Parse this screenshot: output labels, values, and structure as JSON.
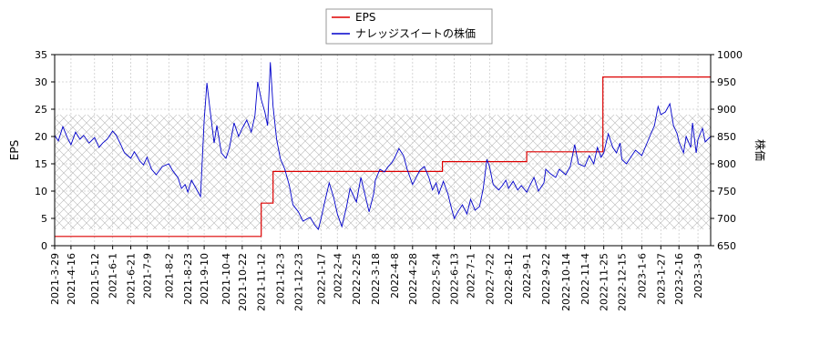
{
  "chart_data": {
    "type": "line",
    "title": "",
    "xlabel": "",
    "ylabel_left": "EPS",
    "ylabel_right": "株価",
    "ylim_left": [
      0,
      35
    ],
    "ylim_right": [
      650,
      1000
    ],
    "yticks_left": [
      0,
      5,
      10,
      15,
      20,
      25,
      30,
      35
    ],
    "yticks_right": [
      650,
      700,
      750,
      800,
      850,
      900,
      950,
      1000
    ],
    "x_range": [
      "2021-03-29",
      "2023-03-23"
    ],
    "x_tick_labels": [
      "2021-3-29",
      "2021-4-16",
      "2021-5-12",
      "2021-6-1",
      "2021-6-21",
      "2021-7-9",
      "2021-8-2",
      "2021-8-23",
      "2021-9-10",
      "2021-10-4",
      "2021-10-22",
      "2021-11-12",
      "2021-12-3",
      "2021-12-23",
      "2022-1-17",
      "2022-2-4",
      "2022-2-25",
      "2022-3-18",
      "2022-4-8",
      "2022-4-28",
      "2022-5-24",
      "2022-6-13",
      "2022-7-1",
      "2022-7-22",
      "2022-8-12",
      "2022-9-1",
      "2022-9-22",
      "2022-10-14",
      "2022-11-4",
      "2022-11-25",
      "2022-12-15",
      "2023-1-6",
      "2023-1-27",
      "2023-2-16",
      "2023-3-9"
    ],
    "grid": true,
    "legend_position": "top-center",
    "series": [
      {
        "name": "EPS",
        "axis": "left",
        "color": "#dd0000",
        "step": true,
        "points": [
          {
            "x": "2021-03-29",
            "y": 1.7
          },
          {
            "x": "2021-11-12",
            "y": 1.7
          },
          {
            "x": "2021-11-12",
            "y": 7.8
          },
          {
            "x": "2021-11-25",
            "y": 7.8
          },
          {
            "x": "2021-11-25",
            "y": 13.6
          },
          {
            "x": "2022-05-31",
            "y": 13.6
          },
          {
            "x": "2022-05-31",
            "y": 15.4
          },
          {
            "x": "2022-09-01",
            "y": 15.4
          },
          {
            "x": "2022-09-01",
            "y": 17.2
          },
          {
            "x": "2022-11-24",
            "y": 17.2
          },
          {
            "x": "2022-11-24",
            "y": 30.9
          },
          {
            "x": "2023-03-23",
            "y": 30.9
          }
        ]
      },
      {
        "name": "ナレッジスイートの株価",
        "axis": "right",
        "color": "#0000cc",
        "step": false,
        "points": [
          {
            "x": "2021-03-29",
            "y": 852
          },
          {
            "x": "2021-04-02",
            "y": 842
          },
          {
            "x": "2021-04-07",
            "y": 868
          },
          {
            "x": "2021-04-12",
            "y": 848
          },
          {
            "x": "2021-04-16",
            "y": 835
          },
          {
            "x": "2021-04-21",
            "y": 858
          },
          {
            "x": "2021-04-26",
            "y": 845
          },
          {
            "x": "2021-04-30",
            "y": 852
          },
          {
            "x": "2021-05-06",
            "y": 838
          },
          {
            "x": "2021-05-12",
            "y": 848
          },
          {
            "x": "2021-05-17",
            "y": 830
          },
          {
            "x": "2021-05-21",
            "y": 838
          },
          {
            "x": "2021-05-26",
            "y": 845
          },
          {
            "x": "2021-06-01",
            "y": 860
          },
          {
            "x": "2021-06-05",
            "y": 852
          },
          {
            "x": "2021-06-10",
            "y": 835
          },
          {
            "x": "2021-06-14",
            "y": 820
          },
          {
            "x": "2021-06-21",
            "y": 810
          },
          {
            "x": "2021-06-25",
            "y": 822
          },
          {
            "x": "2021-07-01",
            "y": 805
          },
          {
            "x": "2021-07-05",
            "y": 798
          },
          {
            "x": "2021-07-09",
            "y": 812
          },
          {
            "x": "2021-07-14",
            "y": 790
          },
          {
            "x": "2021-07-19",
            "y": 780
          },
          {
            "x": "2021-07-26",
            "y": 795
          },
          {
            "x": "2021-08-02",
            "y": 800
          },
          {
            "x": "2021-08-06",
            "y": 788
          },
          {
            "x": "2021-08-12",
            "y": 775
          },
          {
            "x": "2021-08-16",
            "y": 755
          },
          {
            "x": "2021-08-20",
            "y": 762
          },
          {
            "x": "2021-08-23",
            "y": 748
          },
          {
            "x": "2021-08-27",
            "y": 770
          },
          {
            "x": "2021-09-01",
            "y": 755
          },
          {
            "x": "2021-09-06",
            "y": 740
          },
          {
            "x": "2021-09-10",
            "y": 880
          },
          {
            "x": "2021-09-13",
            "y": 948
          },
          {
            "x": "2021-09-16",
            "y": 905
          },
          {
            "x": "2021-09-21",
            "y": 838
          },
          {
            "x": "2021-09-24",
            "y": 870
          },
          {
            "x": "2021-09-29",
            "y": 820
          },
          {
            "x": "2021-10-04",
            "y": 810
          },
          {
            "x": "2021-10-08",
            "y": 830
          },
          {
            "x": "2021-10-13",
            "y": 875
          },
          {
            "x": "2021-10-18",
            "y": 850
          },
          {
            "x": "2021-10-22",
            "y": 865
          },
          {
            "x": "2021-10-27",
            "y": 880
          },
          {
            "x": "2021-11-01",
            "y": 858
          },
          {
            "x": "2021-11-05",
            "y": 888
          },
          {
            "x": "2021-11-08",
            "y": 950
          },
          {
            "x": "2021-11-12",
            "y": 918
          },
          {
            "x": "2021-11-16",
            "y": 895
          },
          {
            "x": "2021-11-19",
            "y": 870
          },
          {
            "x": "2021-11-22",
            "y": 986
          },
          {
            "x": "2021-11-25",
            "y": 905
          },
          {
            "x": "2021-11-29",
            "y": 845
          },
          {
            "x": "2021-12-03",
            "y": 810
          },
          {
            "x": "2021-12-08",
            "y": 790
          },
          {
            "x": "2021-12-13",
            "y": 760
          },
          {
            "x": "2021-12-17",
            "y": 725
          },
          {
            "x": "2021-12-23",
            "y": 712
          },
          {
            "x": "2021-12-28",
            "y": 695
          },
          {
            "x": "2022-01-05",
            "y": 702
          },
          {
            "x": "2022-01-10",
            "y": 688
          },
          {
            "x": "2022-01-14",
            "y": 680
          },
          {
            "x": "2022-01-17",
            "y": 700
          },
          {
            "x": "2022-01-21",
            "y": 730
          },
          {
            "x": "2022-01-26",
            "y": 765
          },
          {
            "x": "2022-01-31",
            "y": 738
          },
          {
            "x": "2022-02-04",
            "y": 708
          },
          {
            "x": "2022-02-09",
            "y": 685
          },
          {
            "x": "2022-02-14",
            "y": 720
          },
          {
            "x": "2022-02-18",
            "y": 755
          },
          {
            "x": "2022-02-25",
            "y": 730
          },
          {
            "x": "2022-03-02",
            "y": 775
          },
          {
            "x": "2022-03-07",
            "y": 740
          },
          {
            "x": "2022-03-11",
            "y": 712
          },
          {
            "x": "2022-03-16",
            "y": 745
          },
          {
            "x": "2022-03-18",
            "y": 770
          },
          {
            "x": "2022-03-23",
            "y": 790
          },
          {
            "x": "2022-03-28",
            "y": 785
          },
          {
            "x": "2022-04-01",
            "y": 795
          },
          {
            "x": "2022-04-05",
            "y": 802
          },
          {
            "x": "2022-04-08",
            "y": 810
          },
          {
            "x": "2022-04-13",
            "y": 828
          },
          {
            "x": "2022-04-18",
            "y": 815
          },
          {
            "x": "2022-04-22",
            "y": 790
          },
          {
            "x": "2022-04-28",
            "y": 762
          },
          {
            "x": "2022-05-06",
            "y": 788
          },
          {
            "x": "2022-05-11",
            "y": 795
          },
          {
            "x": "2022-05-16",
            "y": 775
          },
          {
            "x": "2022-05-20",
            "y": 752
          },
          {
            "x": "2022-05-24",
            "y": 765
          },
          {
            "x": "2022-05-27",
            "y": 745
          },
          {
            "x": "2022-06-01",
            "y": 768
          },
          {
            "x": "2022-06-06",
            "y": 745
          },
          {
            "x": "2022-06-10",
            "y": 718
          },
          {
            "x": "2022-06-13",
            "y": 700
          },
          {
            "x": "2022-06-17",
            "y": 712
          },
          {
            "x": "2022-06-22",
            "y": 725
          },
          {
            "x": "2022-06-27",
            "y": 708
          },
          {
            "x": "2022-07-01",
            "y": 735
          },
          {
            "x": "2022-07-06",
            "y": 715
          },
          {
            "x": "2022-07-11",
            "y": 722
          },
          {
            "x": "2022-07-15",
            "y": 755
          },
          {
            "x": "2022-07-19",
            "y": 808
          },
          {
            "x": "2022-07-22",
            "y": 795
          },
          {
            "x": "2022-07-26",
            "y": 762
          },
          {
            "x": "2022-08-01",
            "y": 752
          },
          {
            "x": "2022-08-05",
            "y": 760
          },
          {
            "x": "2022-08-09",
            "y": 770
          },
          {
            "x": "2022-08-12",
            "y": 755
          },
          {
            "x": "2022-08-17",
            "y": 768
          },
          {
            "x": "2022-08-22",
            "y": 752
          },
          {
            "x": "2022-08-26",
            "y": 760
          },
          {
            "x": "2022-09-01",
            "y": 748
          },
          {
            "x": "2022-09-05",
            "y": 762
          },
          {
            "x": "2022-09-09",
            "y": 775
          },
          {
            "x": "2022-09-14",
            "y": 750
          },
          {
            "x": "2022-09-20",
            "y": 765
          },
          {
            "x": "2022-09-22",
            "y": 790
          },
          {
            "x": "2022-09-27",
            "y": 782
          },
          {
            "x": "2022-10-03",
            "y": 775
          },
          {
            "x": "2022-10-07",
            "y": 790
          },
          {
            "x": "2022-10-14",
            "y": 780
          },
          {
            "x": "2022-10-19",
            "y": 795
          },
          {
            "x": "2022-10-24",
            "y": 835
          },
          {
            "x": "2022-10-28",
            "y": 800
          },
          {
            "x": "2022-11-04",
            "y": 795
          },
          {
            "x": "2022-11-09",
            "y": 815
          },
          {
            "x": "2022-11-14",
            "y": 800
          },
          {
            "x": "2022-11-18",
            "y": 830
          },
          {
            "x": "2022-11-22",
            "y": 812
          },
          {
            "x": "2022-11-25",
            "y": 820
          },
          {
            "x": "2022-11-30",
            "y": 855
          },
          {
            "x": "2022-12-05",
            "y": 830
          },
          {
            "x": "2022-12-09",
            "y": 820
          },
          {
            "x": "2022-12-13",
            "y": 838
          },
          {
            "x": "2022-12-15",
            "y": 808
          },
          {
            "x": "2022-12-20",
            "y": 800
          },
          {
            "x": "2022-12-26",
            "y": 815
          },
          {
            "x": "2022-12-30",
            "y": 825
          },
          {
            "x": "2023-01-06",
            "y": 815
          },
          {
            "x": "2023-01-11",
            "y": 835
          },
          {
            "x": "2023-01-16",
            "y": 855
          },
          {
            "x": "2023-01-20",
            "y": 870
          },
          {
            "x": "2023-01-24",
            "y": 905
          },
          {
            "x": "2023-01-27",
            "y": 890
          },
          {
            "x": "2023-02-01",
            "y": 895
          },
          {
            "x": "2023-02-06",
            "y": 910
          },
          {
            "x": "2023-02-10",
            "y": 870
          },
          {
            "x": "2023-02-14",
            "y": 855
          },
          {
            "x": "2023-02-16",
            "y": 840
          },
          {
            "x": "2023-02-21",
            "y": 820
          },
          {
            "x": "2023-02-24",
            "y": 850
          },
          {
            "x": "2023-03-01",
            "y": 830
          },
          {
            "x": "2023-03-03",
            "y": 875
          },
          {
            "x": "2023-03-07",
            "y": 820
          },
          {
            "x": "2023-03-09",
            "y": 845
          },
          {
            "x": "2023-03-14",
            "y": 865
          },
          {
            "x": "2023-03-17",
            "y": 840
          },
          {
            "x": "2023-03-23",
            "y": 850
          }
        ]
      }
    ]
  }
}
